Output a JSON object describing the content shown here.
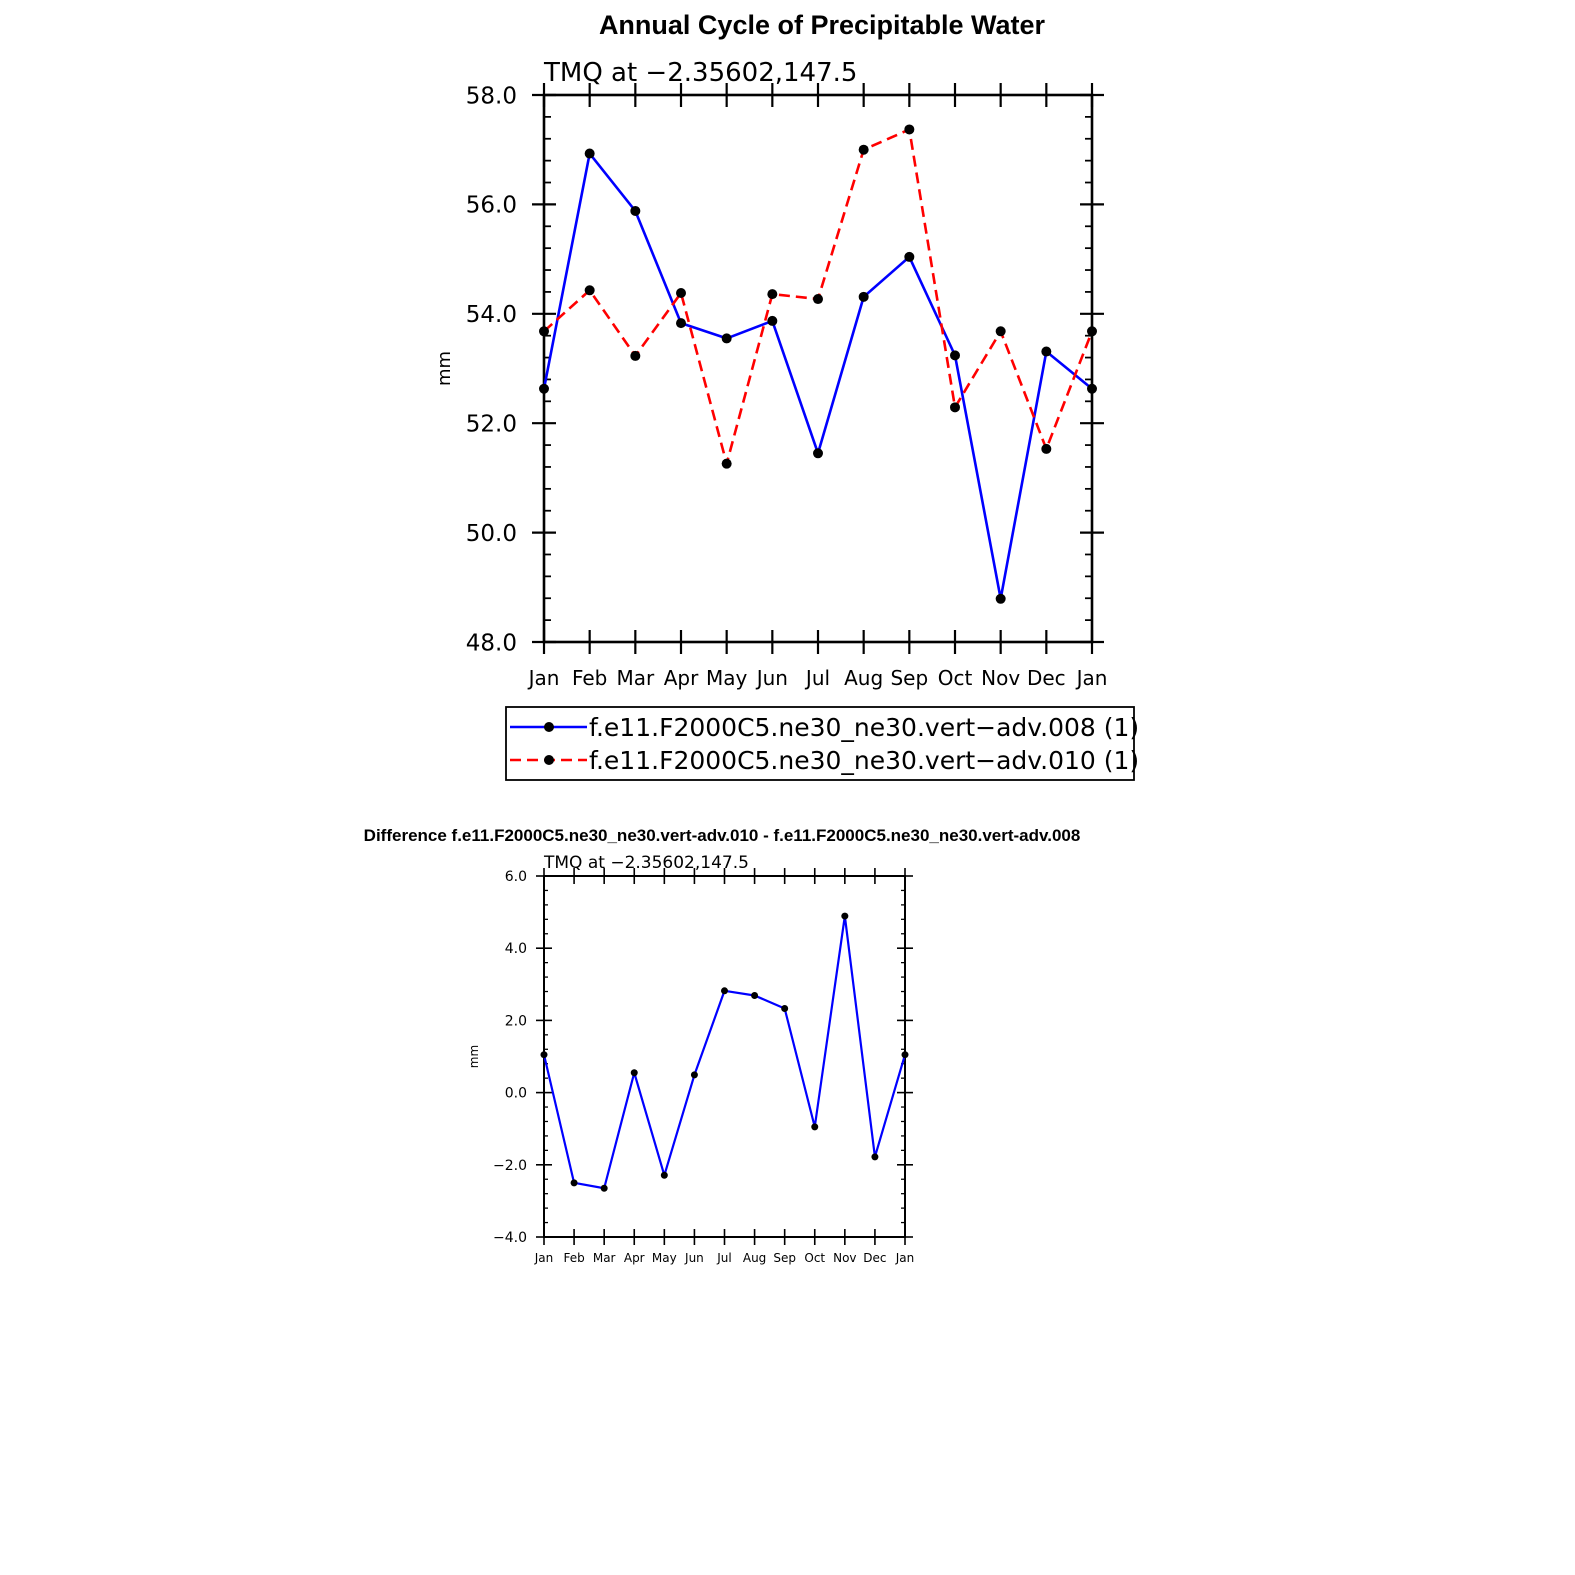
{
  "figure": {
    "title": "Annual Cycle of Precipitable Water",
    "difference_title": "Difference f.e11.F2000C5.ne30_ne30.vert-adv.010 - f.e11.F2000C5.ne30_ne30.vert-adv.008"
  },
  "colors": {
    "series1": "#0000ff",
    "series2": "#ff0000",
    "marker": "#000000",
    "axis": "#000000"
  },
  "chart_data": [
    {
      "type": "line",
      "title": "Annual Cycle of Precipitable Water",
      "subtitle": "TMQ at −2.35602,147.5",
      "xlabel": "",
      "ylabel": "mm",
      "categories": [
        "Jan",
        "Feb",
        "Mar",
        "Apr",
        "May",
        "Jun",
        "Jul",
        "Aug",
        "Sep",
        "Oct",
        "Nov",
        "Dec",
        "Jan"
      ],
      "ylim": [
        48.0,
        58.0
      ],
      "yticks": [
        "48.0",
        "50.0",
        "52.0",
        "54.0",
        "56.0",
        "58.0"
      ],
      "grid": false,
      "legend": "below",
      "series": [
        {
          "name": "f.e11.F2000C5.ne30_ne30.vert−adv.008 (1)",
          "style": "solid",
          "color": "#0000ff",
          "values": [
            52.63,
            56.93,
            55.88,
            53.83,
            53.55,
            53.87,
            51.45,
            54.31,
            55.04,
            53.24,
            48.79,
            53.31,
            52.63
          ]
        },
        {
          "name": "f.e11.F2000C5.ne30_ne30.vert−adv.010 (1)",
          "style": "dashed",
          "color": "#ff0000",
          "values": [
            53.68,
            54.43,
            53.23,
            54.38,
            51.26,
            54.36,
            54.27,
            57.0,
            57.37,
            52.29,
            53.68,
            51.53,
            53.68
          ]
        }
      ]
    },
    {
      "type": "line",
      "title": "Difference f.e11.F2000C5.ne30_ne30.vert-adv.010 - f.e11.F2000C5.ne30_ne30.vert-adv.008",
      "subtitle": "TMQ at −2.35602,147.5",
      "xlabel": "",
      "ylabel": "mm",
      "categories": [
        "Jan",
        "Feb",
        "Mar",
        "Apr",
        "May",
        "Jun",
        "Jul",
        "Aug",
        "Sep",
        "Oct",
        "Nov",
        "Dec",
        "Jan"
      ],
      "ylim": [
        -4.0,
        6.0
      ],
      "yticks": [
        "−4.0",
        "−2.0",
        "0.0",
        "2.0",
        "4.0",
        "6.0"
      ],
      "grid": false,
      "legend": "none",
      "series": [
        {
          "style": "solid",
          "color": "#0000ff",
          "values": [
            1.05,
            -2.5,
            -2.65,
            0.55,
            -2.29,
            0.49,
            2.82,
            2.69,
            2.33,
            -0.95,
            4.89,
            -1.78,
            1.05
          ]
        }
      ]
    }
  ]
}
